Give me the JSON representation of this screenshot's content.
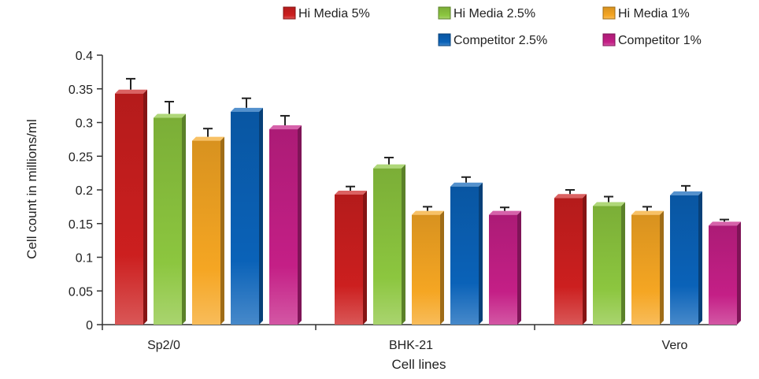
{
  "chart_data": {
    "type": "bar",
    "categories": [
      "Sp2/0",
      "BHK-21",
      "Vero"
    ],
    "series": [
      {
        "name": "Hi Media 5%",
        "values": [
          0.343,
          0.193,
          0.188
        ],
        "errors": [
          0.022,
          0.012,
          0.012
        ],
        "color": "#cc1f1f"
      },
      {
        "name": "Hi Media 2.5%",
        "values": [
          0.307,
          0.232,
          0.176
        ],
        "errors": [
          0.024,
          0.016,
          0.014
        ],
        "color": "#8cc63f"
      },
      {
        "name": "Hi Media 1%",
        "values": [
          0.273,
          0.163,
          0.163
        ],
        "errors": [
          0.018,
          0.012,
          0.012
        ],
        "color": "#f5a623"
      },
      {
        "name": "Competitor 2.5%",
        "values": [
          0.316,
          0.205,
          0.192
        ],
        "errors": [
          0.02,
          0.014,
          0.014
        ],
        "color": "#0a62b8"
      },
      {
        "name": "Competitor 1%",
        "values": [
          0.29,
          0.163,
          0.147
        ],
        "errors": [
          0.02,
          0.011,
          0.009
        ],
        "color": "#c41f86"
      }
    ],
    "yticks": [
      "0",
      "0.05",
      "0.1",
      "0.15",
      "0.2",
      "0.25",
      "0.3",
      "0.35",
      "0.4"
    ],
    "ylim": [
      0,
      0.4
    ],
    "xlabel": "Cell lines",
    "ylabel": "Cell count in millions/ml",
    "legend_position": "top-right",
    "grid": false
  }
}
